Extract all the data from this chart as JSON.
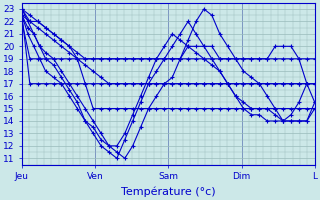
{
  "title": "",
  "xlabel": "Température (°c)",
  "ylabel": "",
  "bg_color": "#cce8e8",
  "plot_bg_color": "#cce8e8",
  "line_color": "#0000cc",
  "grid_color": "#99bbbb",
  "tick_label_color": "#0000cc",
  "axis_label_color": "#0000cc",
  "ylim": [
    10.5,
    23.5
  ],
  "yticks": [
    11,
    12,
    13,
    14,
    15,
    16,
    17,
    18,
    19,
    20,
    21,
    22,
    23
  ],
  "xlim": [
    0,
    148
  ],
  "day_positions": [
    0,
    37,
    74,
    111,
    148
  ],
  "day_labels": [
    "Jeu",
    "Ven",
    "Sam",
    "Dim",
    "L"
  ],
  "series": [
    {
      "x": [
        0,
        4,
        8,
        12,
        16,
        20,
        24,
        28,
        32,
        36,
        40,
        44,
        48,
        52,
        56,
        60,
        64,
        68,
        72,
        76,
        80,
        84,
        88,
        92,
        96,
        100,
        104,
        108,
        112,
        116,
        120,
        124,
        128,
        132,
        136,
        140,
        144,
        148
      ],
      "y": [
        23,
        22.5,
        22,
        21.5,
        21,
        20.5,
        20,
        19.5,
        19,
        19,
        19,
        19,
        19,
        19,
        19,
        19,
        19,
        19,
        19,
        19,
        19,
        20,
        20,
        20,
        20,
        19,
        19,
        19,
        19,
        19,
        19,
        19,
        20,
        20,
        20,
        19,
        17,
        15.5
      ]
    },
    {
      "x": [
        0,
        4,
        8,
        12,
        16,
        20,
        24,
        28,
        32,
        36,
        40,
        44,
        48,
        52,
        56,
        60,
        64,
        68,
        72,
        76,
        80,
        84,
        88,
        92,
        96,
        100,
        104,
        108,
        112,
        116,
        120,
        124,
        128,
        132,
        136,
        140,
        144,
        148
      ],
      "y": [
        23,
        22,
        21.5,
        21,
        20.5,
        20,
        19.5,
        19,
        18.5,
        18,
        17.5,
        17,
        17,
        17,
        17,
        17,
        17,
        17,
        17,
        17,
        17,
        17,
        17,
        17,
        17,
        17,
        17,
        17,
        17,
        17,
        17,
        17,
        17,
        17,
        17,
        17,
        17,
        17
      ]
    },
    {
      "x": [
        0,
        4,
        8,
        12,
        16,
        20,
        24,
        28,
        32,
        36,
        40,
        44,
        48,
        52,
        56,
        60,
        64,
        68,
        72,
        76,
        80,
        84,
        88,
        92,
        96,
        100,
        104,
        108,
        112,
        116,
        120,
        124,
        128,
        132,
        136,
        140,
        144,
        148
      ],
      "y": [
        22.5,
        22,
        22,
        21.5,
        21,
        20.5,
        20,
        19,
        17,
        15,
        15,
        15,
        15,
        15,
        15,
        15,
        15,
        15,
        15,
        15,
        15,
        15,
        15,
        15,
        15,
        15,
        15,
        15,
        15,
        15,
        15,
        15,
        15,
        15,
        15,
        15,
        15,
        15
      ]
    },
    {
      "x": [
        0,
        4,
        8,
        12,
        16,
        20,
        24,
        28,
        32,
        36,
        40,
        44,
        48,
        52,
        56,
        60,
        64,
        68,
        72,
        76,
        80,
        84,
        88,
        92,
        96,
        100,
        104,
        108,
        112,
        116,
        120,
        124,
        128,
        132,
        136,
        140,
        144,
        148
      ],
      "y": [
        22,
        19,
        19,
        19,
        19,
        19,
        19,
        19,
        19,
        19,
        19,
        19,
        19,
        19,
        19,
        19,
        19,
        19,
        19,
        19,
        19,
        19,
        19,
        19,
        19,
        19,
        19,
        19,
        19,
        19,
        19,
        19,
        19,
        19,
        19,
        19,
        19,
        19
      ]
    },
    {
      "x": [
        0,
        4,
        8,
        12,
        16,
        20,
        24,
        28,
        32,
        36,
        40,
        44,
        48,
        52,
        56,
        60,
        64,
        68,
        72,
        76,
        80,
        84,
        88,
        92,
        96,
        100,
        104,
        108,
        112,
        116,
        120,
        124,
        128,
        132,
        136,
        140,
        144,
        148
      ],
      "y": [
        22.5,
        17,
        17,
        17,
        17,
        17,
        17,
        17,
        17,
        17,
        17,
        17,
        17,
        17,
        17,
        17,
        17,
        17,
        17,
        17,
        17,
        17,
        17,
        17,
        17,
        17,
        17,
        17,
        17,
        17,
        17,
        17,
        17,
        17,
        17,
        17,
        17,
        17
      ]
    },
    {
      "x": [
        0,
        3,
        6,
        9,
        12,
        16,
        20,
        24,
        28,
        32,
        36,
        40,
        44,
        48,
        52,
        56,
        60,
        64,
        68,
        72,
        76,
        80,
        84,
        88,
        92,
        96,
        100,
        104,
        108,
        112,
        116,
        120,
        124,
        128,
        132,
        136,
        140,
        144,
        148
      ],
      "y": [
        23,
        22,
        21,
        20,
        19.5,
        19,
        18,
        17,
        16,
        15,
        14,
        13,
        12,
        11.5,
        11,
        12,
        13.5,
        15,
        16,
        17,
        17.5,
        19,
        20.5,
        22,
        23,
        22.5,
        21,
        20,
        19,
        18,
        17.5,
        17,
        16,
        15,
        14,
        14,
        14,
        14,
        15.5
      ]
    },
    {
      "x": [
        0,
        3,
        6,
        9,
        12,
        16,
        20,
        24,
        28,
        32,
        36,
        40,
        44,
        48,
        52,
        56,
        60,
        64,
        68,
        72,
        76,
        80,
        84,
        88,
        92,
        96,
        100,
        104,
        108,
        112,
        116,
        120,
        124,
        128,
        132,
        136,
        140,
        144,
        148
      ],
      "y": [
        22.5,
        21.5,
        21,
        20,
        19,
        18.5,
        17.5,
        16.5,
        15.5,
        14,
        13,
        12,
        11.5,
        11,
        12.5,
        14,
        15.5,
        17,
        18,
        19,
        20,
        21,
        22,
        21,
        20,
        19,
        18,
        17,
        16,
        15.5,
        15,
        15,
        15,
        14.5,
        14,
        14,
        14,
        14,
        15
      ]
    },
    {
      "x": [
        0,
        3,
        6,
        9,
        12,
        16,
        20,
        24,
        28,
        32,
        36,
        40,
        44,
        48,
        52,
        56,
        60,
        64,
        68,
        72,
        76,
        80,
        84,
        88,
        92,
        96,
        100,
        104,
        108,
        112,
        116,
        120,
        124,
        128,
        132,
        136,
        140,
        144,
        148
      ],
      "y": [
        22.5,
        21,
        20,
        19,
        18,
        17.5,
        17,
        16,
        15,
        14,
        13.5,
        12.5,
        12,
        12,
        13,
        14.5,
        16,
        17.5,
        19,
        20,
        21,
        20.5,
        20,
        19.5,
        19,
        18.5,
        18,
        17,
        16,
        15,
        14.5,
        14.5,
        14,
        14,
        14,
        14.5,
        15.5,
        17,
        17
      ]
    }
  ]
}
